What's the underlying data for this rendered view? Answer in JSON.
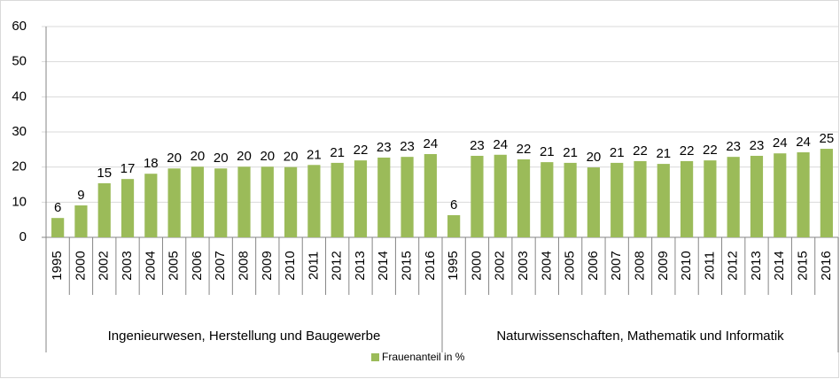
{
  "chart_data": {
    "type": "bar",
    "legend": "Frauenanteil in %",
    "color": "#9bbb59",
    "ylim": [
      0,
      60
    ],
    "yticks": [
      0,
      10,
      20,
      30,
      40,
      50,
      60
    ],
    "grid": true,
    "groups": [
      {
        "name": "Ingenieurwesen, Herstellung und Baugewerbe",
        "categories": [
          "1995",
          "2000",
          "2002",
          "2003",
          "2004",
          "2005",
          "2006",
          "2007",
          "2008",
          "2009",
          "2010",
          "2011",
          "2012",
          "2013",
          "2014",
          "2015",
          "2016"
        ],
        "values": [
          5.5,
          9.1,
          15.4,
          16.6,
          18.1,
          19.6,
          20.1,
          19.6,
          20.1,
          20.1,
          20.0,
          20.6,
          21.2,
          21.9,
          22.7,
          22.9,
          23.7
        ],
        "value_labels": [
          "6",
          "9",
          "15",
          "17",
          "18",
          "20",
          "20",
          "20",
          "20",
          "20",
          "20",
          "21",
          "21",
          "22",
          "23",
          "23",
          "24"
        ]
      },
      {
        "name": "Naturwissenschaften, Mathematik und Informatik",
        "categories": [
          "1995",
          "2000",
          "2002",
          "2003",
          "2004",
          "2005",
          "2006",
          "2007",
          "2008",
          "2009",
          "2010",
          "2011",
          "2012",
          "2013",
          "2014",
          "2015",
          "2016"
        ],
        "values": [
          6.3,
          23.2,
          23.5,
          22.2,
          21.4,
          21.2,
          19.9,
          21.2,
          21.7,
          20.9,
          21.7,
          21.9,
          22.9,
          23.2,
          23.9,
          24.2,
          25.2
        ],
        "value_labels": [
          "6",
          "23",
          "24",
          "22",
          "21",
          "21",
          "20",
          "21",
          "22",
          "21",
          "22",
          "22",
          "23",
          "23",
          "24",
          "24",
          "25"
        ]
      }
    ]
  }
}
